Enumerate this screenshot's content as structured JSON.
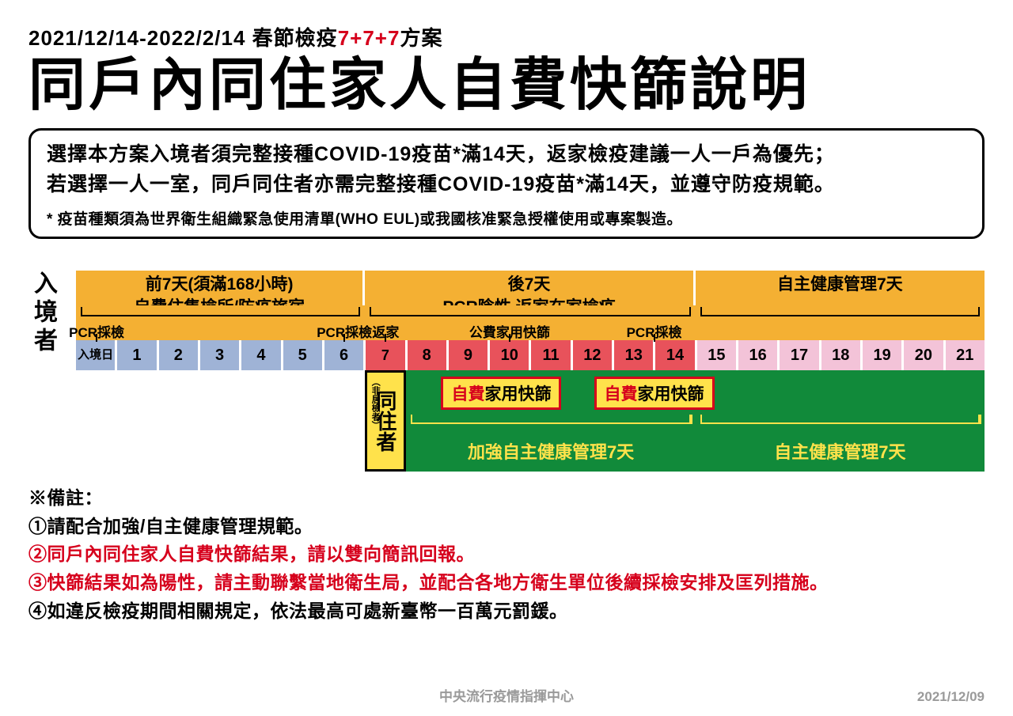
{
  "colors": {
    "red": "#d6001c",
    "orange": "#f4b033",
    "blue": "#9fb3d6",
    "day_red": "#e8525b",
    "pink": "#f3c3d8",
    "green": "#118a3a",
    "yellow": "#ffe24b",
    "gray": "#9a9a9a",
    "black": "#000000",
    "white": "#ffffff"
  },
  "header": {
    "subtitle_prefix": "2021/12/14-2022/2/14 春節檢疫",
    "subtitle_red": "7+7+7",
    "subtitle_suffix": "方案",
    "title": "同戶內同住家人自費快篩說明"
  },
  "info": {
    "line1": "選擇本方案入境者須完整接種COVID-19疫苗*滿14天，返家檢疫建議一人一戶為優先；",
    "line2": "若選擇一人一室，同戶同住者亦需完整接種COVID-19疫苗*滿14天，並遵守防疫規範。",
    "note": "* 疫苗種類須為世界衛生組織緊急使用清單(WHO EUL)或我國核准緊急授權使用或專案製造。"
  },
  "timeline": {
    "side_label": "入境者",
    "phases": [
      {
        "line1": "前7天(須滿168小時)",
        "line2": "自費住集檢所/防疫旅宿",
        "span": 7
      },
      {
        "line1": "後7天",
        "line2": "PCR陰性 返家在家檢疫",
        "span": 8
      },
      {
        "line1": "",
        "line2": "自主健康管理7天",
        "span": 7
      }
    ],
    "events": [
      {
        "label": "PCR採檢",
        "slot": 0.5
      },
      {
        "label": "PCR採檢",
        "slot": 6.5
      },
      {
        "label": "返家",
        "slot": 7.5
      },
      {
        "label": "公費家用快篩",
        "slot": 10.5
      },
      {
        "label": "PCR採檢",
        "slot": 14
      }
    ],
    "total_slots": 22,
    "days": [
      {
        "label": "入境日",
        "class": "entry"
      },
      {
        "label": "1",
        "class": "blue"
      },
      {
        "label": "2",
        "class": "blue"
      },
      {
        "label": "3",
        "class": "blue"
      },
      {
        "label": "4",
        "class": "blue"
      },
      {
        "label": "5",
        "class": "blue"
      },
      {
        "label": "6",
        "class": "blue"
      },
      {
        "label": "7",
        "class": "red ret"
      },
      {
        "label": "8",
        "class": "red"
      },
      {
        "label": "9",
        "class": "red"
      },
      {
        "label": "10",
        "class": "red"
      },
      {
        "label": "11",
        "class": "red"
      },
      {
        "label": "12",
        "class": "red"
      },
      {
        "label": "13",
        "class": "red"
      },
      {
        "label": "14",
        "class": "red"
      },
      {
        "label": "15",
        "class": "pink"
      },
      {
        "label": "16",
        "class": "pink"
      },
      {
        "label": "17",
        "class": "pink"
      },
      {
        "label": "18",
        "class": "pink"
      },
      {
        "label": "19",
        "class": "pink"
      },
      {
        "label": "20",
        "class": "pink"
      },
      {
        "label": "21",
        "class": "pink"
      }
    ]
  },
  "cohabitant": {
    "label_main": "同住者",
    "label_mini": "（非居檢者）",
    "badges": [
      {
        "red": "自費",
        "rest": "家用快篩",
        "slot": 10.3
      },
      {
        "red": "自費",
        "rest": "家用快篩",
        "slot": 14
      }
    ],
    "segments": [
      {
        "text": "加強自主健康管理7天",
        "from": 8,
        "to": 15
      },
      {
        "text": "自主健康管理7天",
        "from": 15,
        "to": 22
      }
    ]
  },
  "notes": {
    "heading": "※備註：",
    "items": [
      {
        "text": "①請配合加強/自主健康管理規範。",
        "red": false
      },
      {
        "text": "②同戶內同住家人自費快篩結果，請以雙向簡訊回報。",
        "red": true
      },
      {
        "text": "③快篩結果如為陽性，請主動聯繫當地衛生局，並配合各地方衛生單位後續採檢安排及匡列措施。",
        "red": true
      },
      {
        "text": "④如違反檢疫期間相關規定，依法最高可處新臺幣一百萬元罰鍰。",
        "red": false
      }
    ]
  },
  "footer": {
    "center": "中央流行疫情指揮中心",
    "right": "2021/12/09"
  }
}
